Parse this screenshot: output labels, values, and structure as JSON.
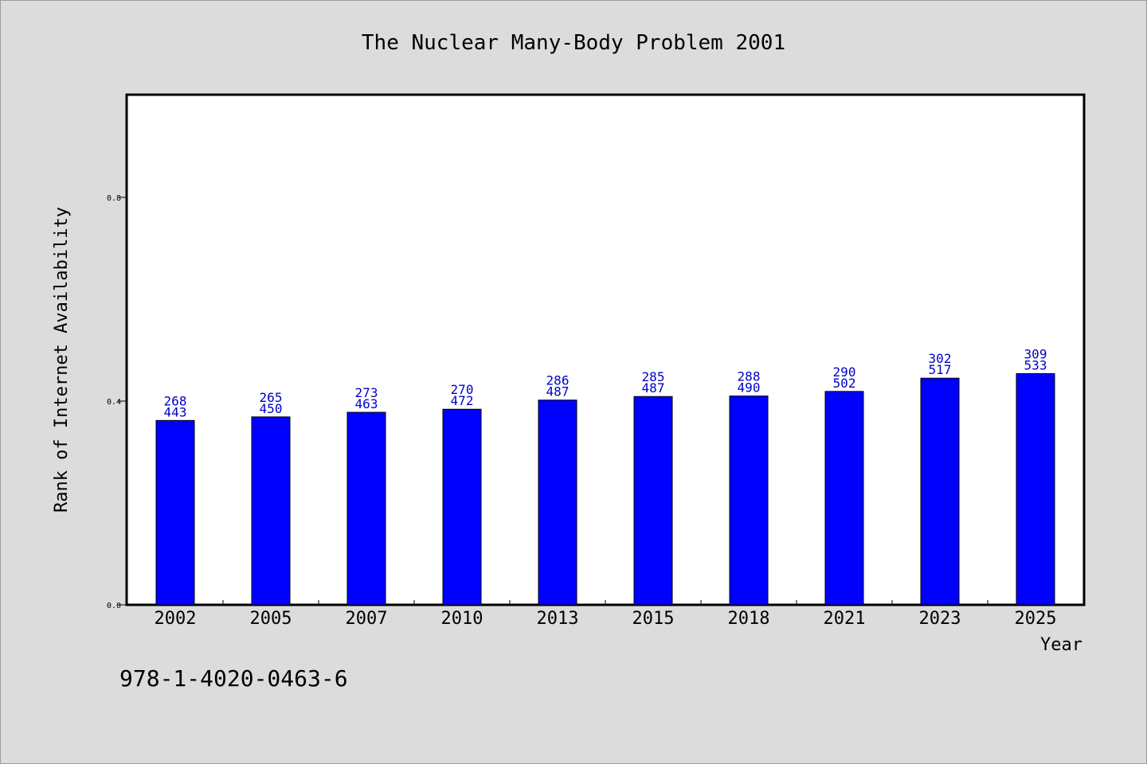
{
  "chart_data": {
    "type": "bar",
    "title": "The Nuclear Many-Body Problem 2001",
    "xlabel": "Year",
    "ylabel": "Rank of Internet Availability",
    "categories": [
      "2002",
      "2005",
      "2007",
      "2010",
      "2013",
      "2015",
      "2018",
      "2021",
      "2023",
      "2025"
    ],
    "values": [
      0.362,
      0.369,
      0.378,
      0.384,
      0.402,
      0.409,
      0.41,
      0.419,
      0.445,
      0.454
    ],
    "data_labels": [
      [
        "268",
        "443"
      ],
      [
        "265",
        "450"
      ],
      [
        "273",
        "463"
      ],
      [
        "270",
        "472"
      ],
      [
        "286",
        "487"
      ],
      [
        "285",
        "487"
      ],
      [
        "288",
        "490"
      ],
      [
        "290",
        "502"
      ],
      [
        "302",
        "517"
      ],
      [
        "309",
        "533"
      ]
    ],
    "yticks": [
      "0.0",
      "0.4",
      "0.8"
    ],
    "ylim": [
      0,
      1.0
    ],
    "grid": false,
    "bar_color": "#0000ff",
    "label_color": "#0000c8"
  },
  "footer": {
    "isbn": "978-1-4020-0463-6"
  }
}
